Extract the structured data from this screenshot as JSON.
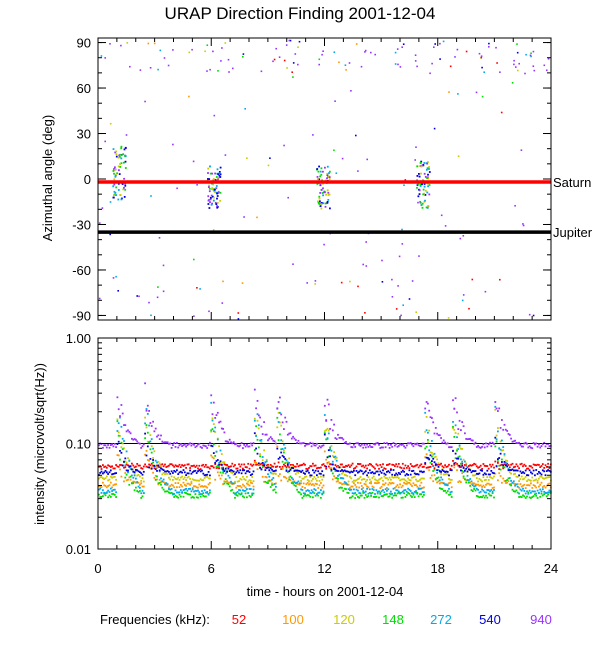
{
  "chart_data": [
    {
      "type": "scatter",
      "title": "URAP Direction Finding  2001-12-04",
      "xlabel": "time - hours on 2001-12-04",
      "ylabel": "Azimuthal angle (deg)",
      "xlim": [
        0,
        24
      ],
      "ylim": [
        -93,
        93
      ],
      "x_ticks": [
        0,
        6,
        12,
        18,
        24
      ],
      "y_ticks": [
        -90,
        -60,
        -30,
        0,
        30,
        60,
        90
      ],
      "y_tick_labels": [
        "-90",
        "-60",
        "-30",
        "0",
        "30",
        "60",
        "90"
      ],
      "reference_lines": [
        {
          "name": "Saturn",
          "y": -2,
          "color": "#ff0000"
        },
        {
          "name": "Jupiter",
          "y": -35,
          "color": "#000000"
        }
      ],
      "bursts": [
        {
          "t": 1.1,
          "y": 5,
          "spread": 18
        },
        {
          "t": 6.1,
          "y": -5,
          "spread": 14
        },
        {
          "t": 11.9,
          "y": -5,
          "spread": 14
        },
        {
          "t": 17.2,
          "y": -3,
          "spread": 16
        }
      ]
    },
    {
      "type": "line",
      "xlabel": "",
      "ylabel": "intensity (microvolt/sqrt(Hz))",
      "xlim": [
        0,
        24
      ],
      "ylim": [
        0.01,
        1.0
      ],
      "yscale": "log",
      "x_ticks": [
        0,
        6,
        12,
        18,
        24
      ],
      "x_tick_labels": [
        "0",
        "6",
        "12",
        "18",
        "24"
      ],
      "y_ticks": [
        0.01,
        0.1,
        1.0
      ],
      "y_tick_labels": [
        "0.01",
        "0.10",
        "1.00"
      ],
      "series": [
        {
          "name": "52",
          "color": "#ff0000",
          "baseline": 0.062,
          "spike_peak": 0.07
        },
        {
          "name": "100",
          "color": "#ff9900",
          "baseline": 0.041,
          "spike_peak": 0.09
        },
        {
          "name": "120",
          "color": "#cccc00",
          "baseline": 0.047,
          "spike_peak": 0.22
        },
        {
          "name": "148",
          "color": "#00dd00",
          "baseline": 0.033,
          "spike_peak": 0.16
        },
        {
          "name": "272",
          "color": "#00aaee",
          "baseline": 0.036,
          "spike_peak": 0.25
        },
        {
          "name": "540",
          "color": "#0000dd",
          "baseline": 0.054,
          "spike_peak": 0.12
        },
        {
          "name": "940",
          "color": "#9933ff",
          "baseline": 0.098,
          "spike_peak": 0.35
        }
      ],
      "bursts": [
        1.0,
        2.5,
        6.0,
        8.3,
        9.5,
        12.0,
        17.3,
        18.8,
        21.0
      ]
    }
  ],
  "legend": {
    "label": "Frequencies (kHz):",
    "items": [
      {
        "text": "52",
        "color": "#ff0000"
      },
      {
        "text": "100",
        "color": "#ff9900"
      },
      {
        "text": "120",
        "color": "#cccc00"
      },
      {
        "text": "148",
        "color": "#00dd00"
      },
      {
        "text": "272",
        "color": "#00aaee"
      },
      {
        "text": "540",
        "color": "#0000dd"
      },
      {
        "text": "940",
        "color": "#9933ff"
      }
    ]
  }
}
